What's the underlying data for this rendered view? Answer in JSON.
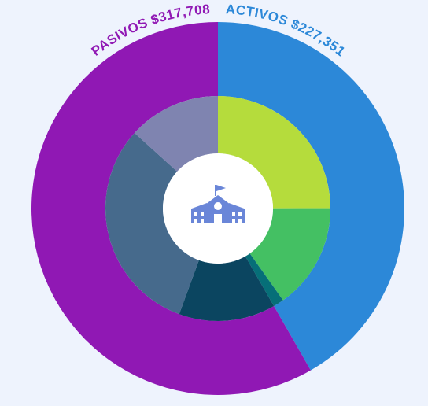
{
  "chart_data": {
    "type": "nested-donut",
    "categories": [
      "ACTIVOS",
      "PASIVOS"
    ],
    "values": [
      227351,
      317708
    ],
    "value_labels": [
      "$227,351",
      "$317,708"
    ],
    "colors": [
      "#2c88d8",
      "#9018b4"
    ],
    "inner": {
      "values": [
        136000,
        83000,
        8351,
        75700,
        169600,
        72408
      ],
      "colors": [
        "#b5dc3c",
        "#44c063",
        "#066f78",
        "#0b4560",
        "#466a8c",
        "#7f84b0"
      ]
    }
  }
}
